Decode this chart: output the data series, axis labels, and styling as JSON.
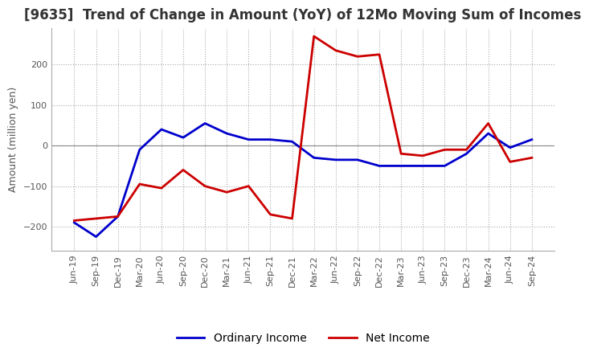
{
  "title": "[9635]  Trend of Change in Amount (YoY) of 12Mo Moving Sum of Incomes",
  "ylabel": "Amount (million yen)",
  "ylim": [
    -260,
    290
  ],
  "yticks": [
    -200,
    -100,
    0,
    100,
    200
  ],
  "x_labels": [
    "Jun-19",
    "Sep-19",
    "Dec-19",
    "Mar-20",
    "Jun-20",
    "Sep-20",
    "Dec-20",
    "Mar-21",
    "Jun-21",
    "Sep-21",
    "Dec-21",
    "Mar-22",
    "Jun-22",
    "Sep-22",
    "Dec-22",
    "Mar-23",
    "Jun-23",
    "Sep-23",
    "Dec-23",
    "Mar-24",
    "Jun-24",
    "Sep-24"
  ],
  "ordinary_income": [
    -190,
    -225,
    -175,
    -10,
    40,
    20,
    55,
    30,
    15,
    15,
    10,
    -30,
    -35,
    -35,
    -50,
    -50,
    -50,
    -50,
    -20,
    30,
    -5,
    15
  ],
  "net_income": [
    -185,
    -180,
    -175,
    -95,
    -105,
    -60,
    -100,
    -115,
    -100,
    -170,
    -180,
    270,
    235,
    220,
    225,
    -20,
    -25,
    -10,
    -10,
    55,
    -40,
    -30
  ],
  "ordinary_color": "#0000cc",
  "net_color": "#cc0000",
  "grid_color": "#aaaaaa",
  "grid_style": "dotted",
  "background_color": "#ffffff",
  "title_fontsize": 12,
  "tick_fontsize": 8,
  "ylabel_fontsize": 9,
  "legend_fontsize": 10,
  "linewidth": 2.0
}
